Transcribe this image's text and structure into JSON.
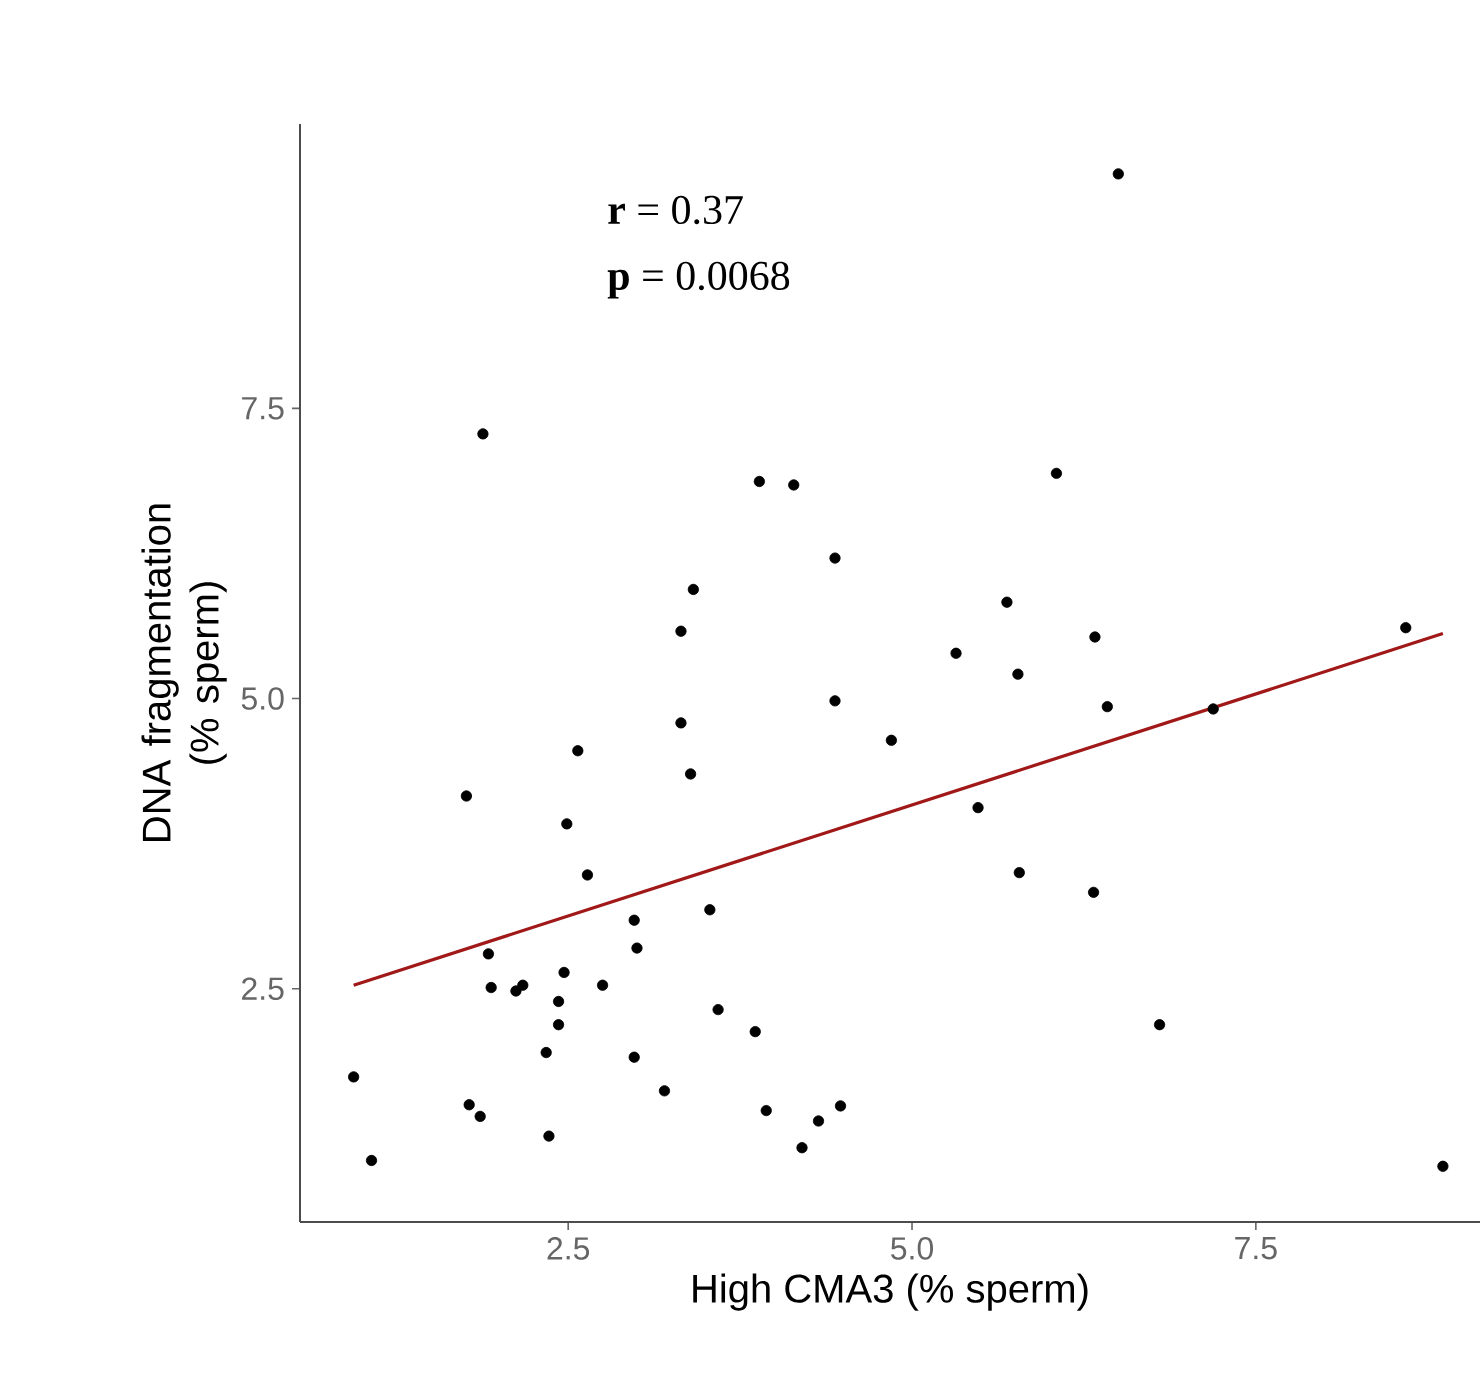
{
  "chart_data": {
    "type": "scatter",
    "xlabel": "High CMA3 (% sperm)",
    "ylabel": "DNA fragmentation (% sperm)",
    "annotations": [
      "**r** = 0.37",
      "**p** = 0.0068"
    ],
    "xlim": [
      0.55,
      9.13
    ],
    "ylim": [
      0.49,
      9.95
    ],
    "xticks": [
      {
        "value": 2.5,
        "label": "2.5"
      },
      {
        "value": 5,
        "label": "5.0"
      },
      {
        "value": 7.5,
        "label": "7.5"
      }
    ],
    "yticks": [
      {
        "value": 2.5,
        "label": "2.5"
      },
      {
        "value": 5,
        "label": "5.0"
      },
      {
        "value": 7.5,
        "label": "7.5"
      }
    ],
    "series": [
      {
        "type": "scatter",
        "marker": "circle",
        "color": "#000000",
        "x": [
          1.88,
          3.89,
          4.14,
          4.44,
          3.41,
          3.32,
          6.5,
          6.05,
          5.69,
          5.32,
          6.33,
          5.77,
          8.59,
          1.76,
          2.57,
          3.32,
          3.39,
          4.44,
          4.85,
          2.49,
          2.64,
          2.98,
          3.0,
          3.53,
          1.92,
          1.94,
          2.12,
          2.17,
          2.47,
          2.43,
          2.43,
          2.75,
          2.34,
          2.98,
          3.59,
          3.86,
          3.2,
          0.94,
          1.78,
          1.86,
          2.36,
          1.07,
          3.94,
          4.2,
          4.32,
          4.48,
          6.42,
          7.19,
          5.48,
          5.78,
          6.32,
          6.8,
          8.86
        ],
        "values": [
          7.28,
          6.87,
          6.84,
          6.21,
          5.94,
          5.58,
          9.52,
          6.94,
          5.83,
          5.39,
          5.53,
          5.21,
          5.61,
          4.16,
          4.55,
          4.79,
          4.35,
          4.98,
          4.64,
          3.92,
          3.48,
          3.09,
          2.85,
          3.18,
          2.8,
          2.51,
          2.48,
          2.53,
          2.64,
          2.39,
          2.19,
          2.53,
          1.95,
          1.91,
          2.32,
          2.13,
          1.62,
          1.74,
          1.5,
          1.4,
          1.23,
          1.02,
          1.45,
          1.13,
          1.36,
          1.49,
          4.93,
          4.91,
          4.06,
          3.5,
          3.33,
          2.19,
          0.97
        ]
      },
      {
        "type": "line",
        "color": "#a01818",
        "x": [
          0.94,
          8.86
        ],
        "values": [
          2.53,
          5.56
        ]
      }
    ]
  }
}
